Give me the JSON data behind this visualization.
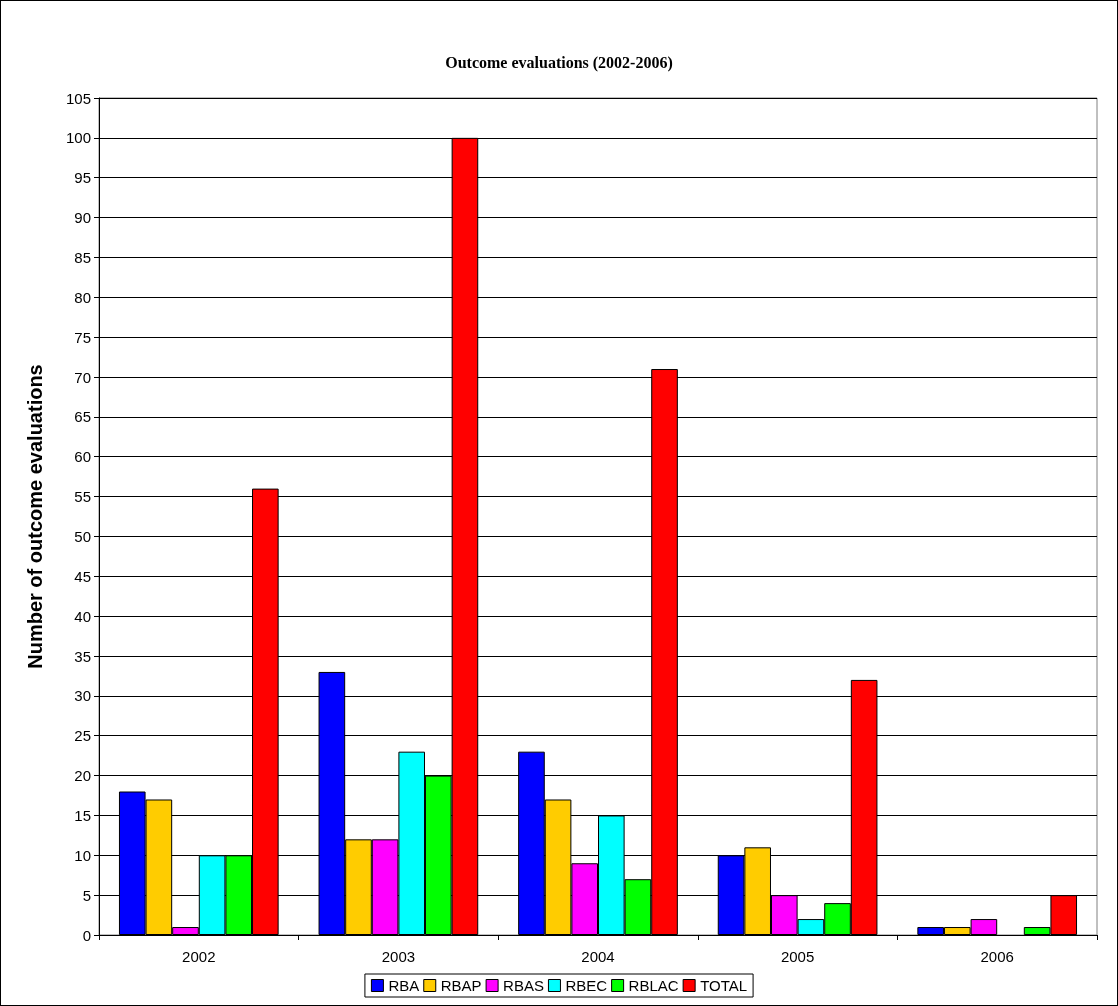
{
  "chart_data": {
    "type": "bar",
    "title": "Outcome evaluations (2002-2006)",
    "ylabel": "Number of outcome evaluations",
    "categories": [
      "2002",
      "2003",
      "2004",
      "2005",
      "2006"
    ],
    "series": [
      {
        "name": "RBA",
        "color": "#0000ff",
        "values": [
          18,
          33,
          23,
          10,
          1
        ]
      },
      {
        "name": "RBAP",
        "color": "#ffcc00",
        "values": [
          17,
          12,
          17,
          11,
          1
        ]
      },
      {
        "name": "RBAS",
        "color": "#ff00ff",
        "values": [
          1,
          12,
          9,
          5,
          2
        ]
      },
      {
        "name": "RBEC",
        "color": "#00ffff",
        "values": [
          10,
          23,
          15,
          2,
          null
        ]
      },
      {
        "name": "RBLAC",
        "color": "#00ff00",
        "values": [
          10,
          20,
          7,
          4,
          1
        ]
      },
      {
        "name": "TOTAL",
        "color": "#ff0000",
        "values": [
          56,
          100,
          71,
          32,
          5
        ]
      }
    ],
    "ylim": [
      0,
      105
    ],
    "yticks": [
      0,
      5,
      10,
      15,
      20,
      25,
      30,
      35,
      40,
      45,
      50,
      55,
      60,
      65,
      70,
      75,
      80,
      85,
      90,
      95,
      100,
      105
    ],
    "grid": "y",
    "legend": "bottom"
  }
}
